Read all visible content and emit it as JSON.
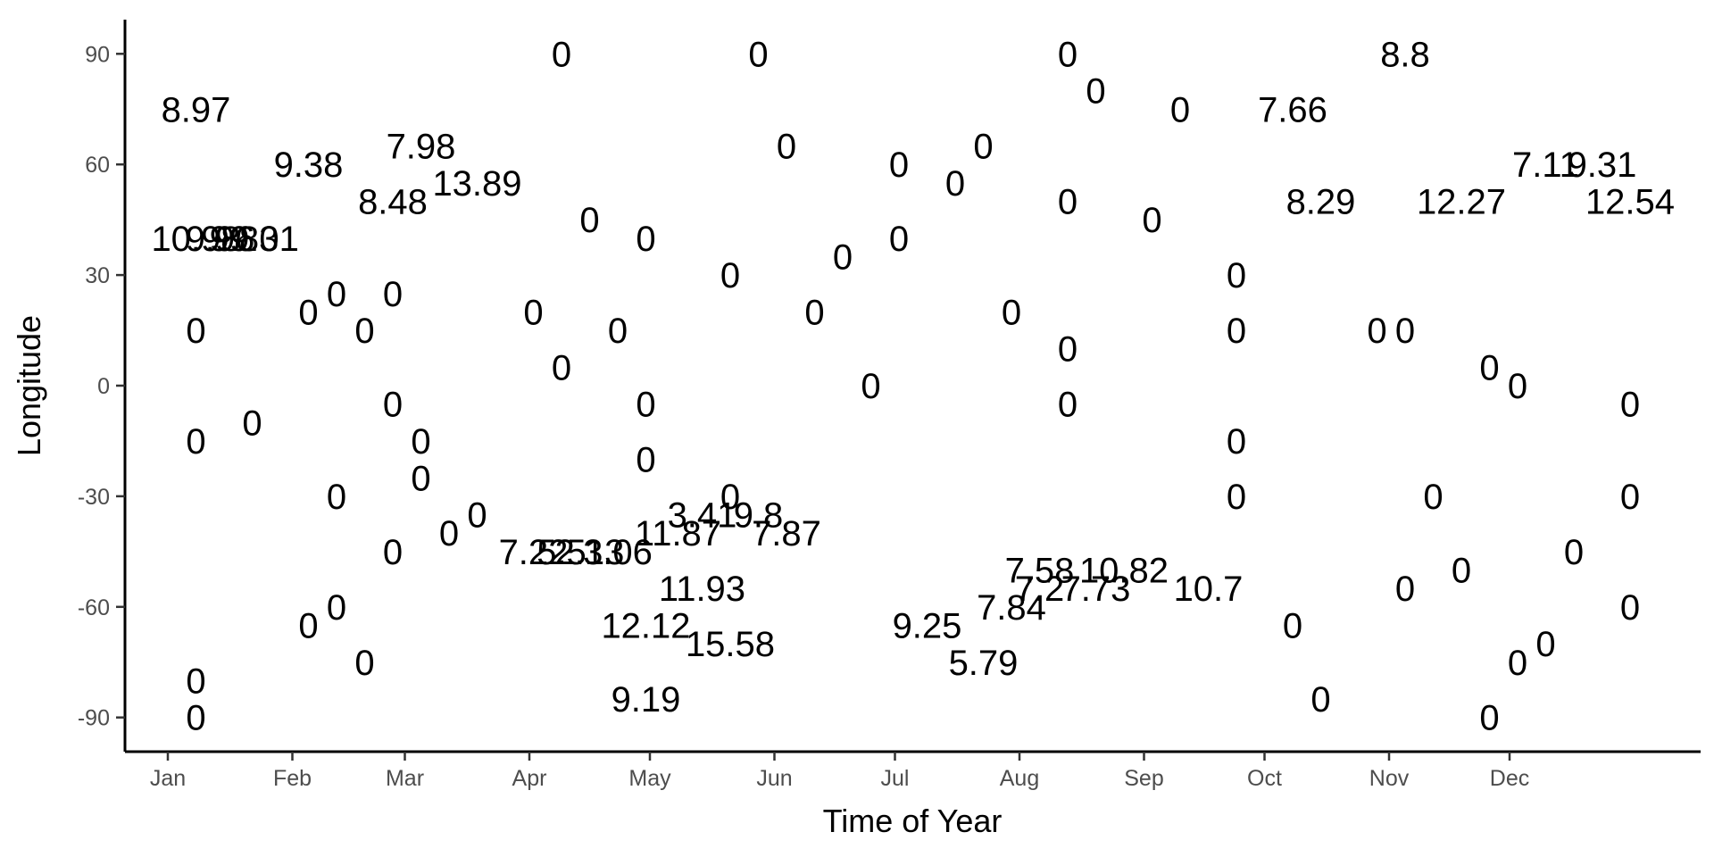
{
  "chart_data": {
    "type": "scatter",
    "mark": "text",
    "xlabel": "Time of Year",
    "ylabel": "Longitude",
    "xlim": [
      -10,
      370
    ],
    "ylim": [
      -100,
      100
    ],
    "x_ticks": [
      {
        "value": 0,
        "label": "Jan"
      },
      {
        "value": 31,
        "label": "Feb"
      },
      {
        "value": 59,
        "label": "Mar"
      },
      {
        "value": 90,
        "label": "Apr"
      },
      {
        "value": 120,
        "label": "May"
      },
      {
        "value": 151,
        "label": "Jun"
      },
      {
        "value": 181,
        "label": "Jul"
      },
      {
        "value": 212,
        "label": "Aug"
      },
      {
        "value": 243,
        "label": "Sep"
      },
      {
        "value": 273,
        "label": "Oct"
      },
      {
        "value": 304,
        "label": "Nov"
      },
      {
        "value": 334,
        "label": "Dec"
      }
    ],
    "y_ticks": [
      {
        "value": 90,
        "label": "90"
      },
      {
        "value": 60,
        "label": "60"
      },
      {
        "value": 30,
        "label": "30"
      },
      {
        "value": 0,
        "label": "0"
      },
      {
        "value": -30,
        "label": "-30"
      },
      {
        "value": -60,
        "label": "-60"
      },
      {
        "value": -90,
        "label": "-90"
      }
    ],
    "grid": false,
    "points": [
      {
        "x": 7,
        "y": 75,
        "label": "8.97"
      },
      {
        "x": 7,
        "y": 40,
        "label": "10.98"
      },
      {
        "x": 13,
        "y": 40,
        "label": "9.96"
      },
      {
        "x": 19,
        "y": 40,
        "label": "9.83"
      },
      {
        "x": 24,
        "y": 40,
        "label": "9.01"
      },
      {
        "x": 35,
        "y": 60,
        "label": "9.38"
      },
      {
        "x": 63,
        "y": 65,
        "label": "7.98"
      },
      {
        "x": 56,
        "y": 50,
        "label": "8.48"
      },
      {
        "x": 77,
        "y": 55,
        "label": "13.89"
      },
      {
        "x": 7,
        "y": 15,
        "label": "0"
      },
      {
        "x": 7,
        "y": -15,
        "label": "0"
      },
      {
        "x": 21,
        "y": -10,
        "label": "0"
      },
      {
        "x": 35,
        "y": 20,
        "label": "0"
      },
      {
        "x": 42,
        "y": 25,
        "label": "0"
      },
      {
        "x": 49,
        "y": 15,
        "label": "0"
      },
      {
        "x": 56,
        "y": 25,
        "label": "0"
      },
      {
        "x": 56,
        "y": -5,
        "label": "0"
      },
      {
        "x": 63,
        "y": -15,
        "label": "0"
      },
      {
        "x": 63,
        "y": -25,
        "label": "0"
      },
      {
        "x": 42,
        "y": -30,
        "label": "0"
      },
      {
        "x": 56,
        "y": -45,
        "label": "0"
      },
      {
        "x": 70,
        "y": -40,
        "label": "0"
      },
      {
        "x": 77,
        "y": -35,
        "label": "0"
      },
      {
        "x": 35,
        "y": -65,
        "label": "0"
      },
      {
        "x": 42,
        "y": -60,
        "label": "0"
      },
      {
        "x": 49,
        "y": -75,
        "label": "0"
      },
      {
        "x": 7,
        "y": -80,
        "label": "0"
      },
      {
        "x": 7,
        "y": -90,
        "label": "0"
      },
      {
        "x": 98,
        "y": 90,
        "label": "0"
      },
      {
        "x": 147,
        "y": 90,
        "label": "0"
      },
      {
        "x": 154,
        "y": 65,
        "label": "0"
      },
      {
        "x": 105,
        "y": 45,
        "label": "0"
      },
      {
        "x": 119,
        "y": 40,
        "label": "0"
      },
      {
        "x": 91,
        "y": 20,
        "label": "0"
      },
      {
        "x": 112,
        "y": 15,
        "label": "0"
      },
      {
        "x": 98,
        "y": 5,
        "label": "0"
      },
      {
        "x": 140,
        "y": 30,
        "label": "0"
      },
      {
        "x": 119,
        "y": -5,
        "label": "0"
      },
      {
        "x": 119,
        "y": -20,
        "label": "0"
      },
      {
        "x": 161,
        "y": 20,
        "label": "0"
      },
      {
        "x": 168,
        "y": 35,
        "label": "0"
      },
      {
        "x": 175,
        "y": 0,
        "label": "0"
      },
      {
        "x": 140,
        "y": -30,
        "label": "0"
      },
      {
        "x": 91,
        "y": -45,
        "label": "7.22"
      },
      {
        "x": 98,
        "y": -45,
        "label": "5.5"
      },
      {
        "x": 105,
        "y": -45,
        "label": "2.13"
      },
      {
        "x": 112,
        "y": -45,
        "label": "3.06"
      },
      {
        "x": 127,
        "y": -40,
        "label": "11.87"
      },
      {
        "x": 133,
        "y": -35,
        "label": "3.41"
      },
      {
        "x": 147,
        "y": -35,
        "label": "9.8"
      },
      {
        "x": 154,
        "y": -40,
        "label": "7.87"
      },
      {
        "x": 133,
        "y": -55,
        "label": "11.93"
      },
      {
        "x": 119,
        "y": -65,
        "label": "12.12"
      },
      {
        "x": 140,
        "y": -70,
        "label": "15.58"
      },
      {
        "x": 119,
        "y": -85,
        "label": "9.19"
      },
      {
        "x": 189,
        "y": -65,
        "label": "9.25"
      },
      {
        "x": 210,
        "y": -60,
        "label": "7.84"
      },
      {
        "x": 203,
        "y": -75,
        "label": "5.79"
      },
      {
        "x": 182,
        "y": 60,
        "label": "0"
      },
      {
        "x": 182,
        "y": 40,
        "label": "0"
      },
      {
        "x": 196,
        "y": 55,
        "label": "0"
      },
      {
        "x": 203,
        "y": 65,
        "label": "0"
      },
      {
        "x": 210,
        "y": 20,
        "label": "0"
      },
      {
        "x": 224,
        "y": 90,
        "label": "0"
      },
      {
        "x": 231,
        "y": 80,
        "label": "0"
      },
      {
        "x": 224,
        "y": 50,
        "label": "0"
      },
      {
        "x": 245,
        "y": 45,
        "label": "0"
      },
      {
        "x": 252,
        "y": 75,
        "label": "0"
      },
      {
        "x": 224,
        "y": 10,
        "label": "0"
      },
      {
        "x": 224,
        "y": -5,
        "label": "0"
      },
      {
        "x": 217,
        "y": -50,
        "label": "7.58"
      },
      {
        "x": 217,
        "y": -55,
        "label": "7.2"
      },
      {
        "x": 231,
        "y": -55,
        "label": "7.73"
      },
      {
        "x": 238,
        "y": -50,
        "label": "10.82"
      },
      {
        "x": 259,
        "y": -55,
        "label": "10.7"
      },
      {
        "x": 266,
        "y": 30,
        "label": "0"
      },
      {
        "x": 266,
        "y": 15,
        "label": "0"
      },
      {
        "x": 266,
        "y": -15,
        "label": "0"
      },
      {
        "x": 266,
        "y": -30,
        "label": "0"
      },
      {
        "x": 280,
        "y": 75,
        "label": "7.66"
      },
      {
        "x": 287,
        "y": 50,
        "label": "8.29"
      },
      {
        "x": 280,
        "y": -65,
        "label": "0"
      },
      {
        "x": 287,
        "y": -85,
        "label": "0"
      },
      {
        "x": 301,
        "y": 15,
        "label": "0"
      },
      {
        "x": 308,
        "y": 15,
        "label": "0"
      },
      {
        "x": 308,
        "y": 90,
        "label": "8.8"
      },
      {
        "x": 322,
        "y": 50,
        "label": "12.27"
      },
      {
        "x": 343,
        "y": 60,
        "label": "7.11"
      },
      {
        "x": 357,
        "y": 60,
        "label": "9.31"
      },
      {
        "x": 364,
        "y": 50,
        "label": "12.54"
      },
      {
        "x": 329,
        "y": 5,
        "label": "0"
      },
      {
        "x": 336,
        "y": 0,
        "label": "0"
      },
      {
        "x": 315,
        "y": -30,
        "label": "0"
      },
      {
        "x": 308,
        "y": -55,
        "label": "0"
      },
      {
        "x": 322,
        "y": -50,
        "label": "0"
      },
      {
        "x": 336,
        "y": -75,
        "label": "0"
      },
      {
        "x": 343,
        "y": -70,
        "label": "0"
      },
      {
        "x": 329,
        "y": -90,
        "label": "0"
      },
      {
        "x": 350,
        "y": -45,
        "label": "0"
      },
      {
        "x": 364,
        "y": -5,
        "label": "0"
      },
      {
        "x": 364,
        "y": -30,
        "label": "0"
      },
      {
        "x": 364,
        "y": -60,
        "label": "0"
      }
    ]
  }
}
